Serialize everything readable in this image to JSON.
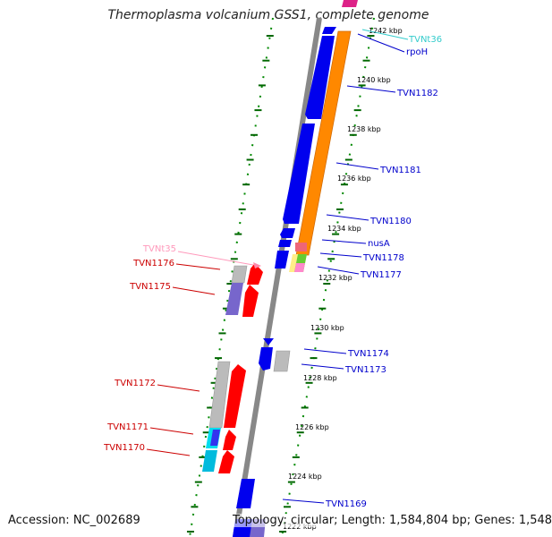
{
  "title": "Thermoplasma volcanium GSS1, complete genome",
  "footer": {
    "accession": "Accession: NC_002689",
    "summary": "Topology: circular; Length: 1,584,804 bp; Genes: 1,548"
  },
  "scale_labels": [
    "1242 kbp",
    "1240 kbp",
    "1238 kbp",
    "1236 kbp",
    "1234 kbp",
    "1232 kbp",
    "1230 kbp",
    "1228 kbp",
    "1226 kbp",
    "1224 kbp",
    "1222 kbp"
  ],
  "genes_right": [
    {
      "name": "TVNt36",
      "color": "#33cccc"
    },
    {
      "name": "rpoH",
      "color": "#0000cc"
    },
    {
      "name": "TVN1182",
      "color": "#0000cc"
    },
    {
      "name": "TVN1181",
      "color": "#0000cc"
    },
    {
      "name": "TVN1180",
      "color": "#0000cc"
    },
    {
      "name": "nusA",
      "color": "#0000cc"
    },
    {
      "name": "TVN1178",
      "color": "#0000cc"
    },
    {
      "name": "TVN1177",
      "color": "#0000cc"
    },
    {
      "name": "TVN1174",
      "color": "#0000cc"
    },
    {
      "name": "TVN1173",
      "color": "#0000cc"
    },
    {
      "name": "TVN1169",
      "color": "#0000cc"
    }
  ],
  "genes_left": [
    {
      "name": "TVNt35",
      "color": "#ff99bb"
    },
    {
      "name": "TVN1176",
      "color": "#cc0000"
    },
    {
      "name": "TVN1175",
      "color": "#cc0000"
    },
    {
      "name": "TVN1172",
      "color": "#cc0000"
    },
    {
      "name": "TVN1171",
      "color": "#cc0000"
    },
    {
      "name": "TVN1170",
      "color": "#cc0000"
    }
  ],
  "colors": {
    "forward_gene": "#ff0000",
    "reverse_gene": "#0000ee",
    "operon": "#ff8800",
    "pseudo": "#bbbbbb",
    "backbone": "#888888",
    "scale_tick": "#006600"
  }
}
